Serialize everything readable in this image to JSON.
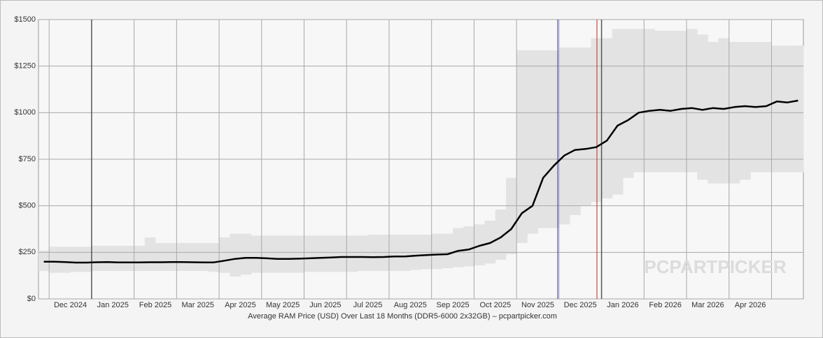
{
  "chart_data": {
    "type": "line",
    "xlabel": "Average RAM Price (USD) Over Last 18 Months (DDR5-6000 2x32GB) – pcpartpicker.com",
    "watermark": "PCPARTPICKER",
    "categories": [
      null,
      null,
      null,
      "Dec 2024",
      null,
      null,
      null,
      "Jan 2025",
      null,
      null,
      null,
      "Feb 2025",
      null,
      null,
      null,
      "Mar 2025",
      null,
      null,
      null,
      "Apr 2025",
      null,
      null,
      null,
      "May 2025",
      null,
      null,
      null,
      "Jun 2025",
      null,
      null,
      null,
      "Jul 2025",
      null,
      null,
      null,
      "Aug 2025",
      null,
      null,
      null,
      "Sep 2025",
      null,
      null,
      null,
      "Oct 2025",
      null,
      null,
      null,
      "Nov 2025",
      null,
      null,
      null,
      "Dec 2025",
      null,
      null,
      null,
      "Jan 2026",
      null,
      null,
      null,
      "Feb 2026",
      null,
      null,
      null,
      "Mar 2026",
      null,
      null,
      null,
      "Apr 2026",
      null,
      null,
      null,
      null
    ],
    "values": [
      200,
      200,
      198,
      195,
      195,
      197,
      198,
      196,
      196,
      196,
      197,
      197,
      198,
      198,
      197,
      196,
      196,
      205,
      215,
      220,
      220,
      218,
      215,
      215,
      216,
      218,
      220,
      222,
      225,
      225,
      225,
      224,
      225,
      228,
      228,
      232,
      235,
      238,
      240,
      258,
      265,
      285,
      300,
      330,
      375,
      460,
      500,
      650,
      715,
      770,
      800,
      805,
      815,
      850,
      930,
      960,
      1000,
      1010,
      1015,
      1010,
      1020,
      1025,
      1015,
      1025,
      1020,
      1030,
      1035,
      1030,
      1035,
      1060,
      1055,
      1065
    ],
    "color": "#000000",
    "band": {
      "color": "#e3e3e3",
      "low": [
        150,
        140,
        140,
        145,
        145,
        150,
        150,
        150,
        150,
        150,
        150,
        150,
        150,
        150,
        150,
        150,
        145,
        140,
        120,
        130,
        140,
        140,
        140,
        140,
        140,
        145,
        145,
        145,
        145,
        145,
        150,
        150,
        150,
        150,
        150,
        155,
        160,
        160,
        165,
        170,
        175,
        180,
        190,
        210,
        240,
        300,
        350,
        380,
        380,
        400,
        450,
        500,
        520,
        540,
        560,
        650,
        680,
        680,
        680,
        680,
        680,
        680,
        640,
        620,
        620,
        620,
        640,
        680,
        680,
        680,
        680,
        680
      ],
      "high": [
        260,
        280,
        280,
        280,
        280,
        285,
        285,
        285,
        285,
        285,
        330,
        300,
        300,
        300,
        300,
        300,
        300,
        330,
        350,
        350,
        340,
        340,
        340,
        340,
        340,
        340,
        340,
        340,
        340,
        340,
        340,
        345,
        345,
        345,
        345,
        345,
        345,
        350,
        350,
        380,
        390,
        400,
        420,
        480,
        650,
        1335,
        1335,
        1335,
        1335,
        1350,
        1350,
        1350,
        1400,
        1400,
        1450,
        1450,
        1450,
        1450,
        1440,
        1440,
        1440,
        1450,
        1420,
        1380,
        1400,
        1380,
        1380,
        1380,
        1380,
        1360,
        1360,
        1360
      ]
    },
    "ylim": [
      0,
      1500
    ],
    "yticks": [
      {
        "value": 0,
        "label": "$0"
      },
      {
        "value": 250,
        "label": "$250"
      },
      {
        "value": 500,
        "label": "$500"
      },
      {
        "value": 750,
        "label": "$750"
      },
      {
        "value": 1000,
        "label": "$1000"
      },
      {
        "value": 1250,
        "label": "$1250"
      },
      {
        "value": 1500,
        "label": "$1500"
      }
    ],
    "grid": true
  }
}
